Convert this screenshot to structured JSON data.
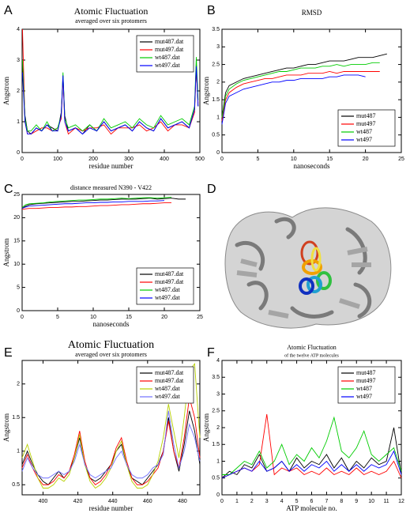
{
  "chart_data": [
    {
      "type": "line",
      "label": "A",
      "title": "Atomic Fluctuation",
      "subtitle": "averaged over six protomers",
      "xlabel": "residue number",
      "ylabel": "Angstrom",
      "x": [
        1,
        8,
        15,
        25,
        40,
        55,
        70,
        85,
        100,
        110,
        115,
        120,
        130,
        150,
        170,
        190,
        210,
        230,
        250,
        270,
        290,
        310,
        330,
        350,
        370,
        390,
        410,
        430,
        450,
        470,
        485,
        490,
        495
      ],
      "series": [
        {
          "name": "mut487.dat",
          "color": "#000000",
          "values": [
            2.8,
            1.2,
            0.7,
            0.6,
            0.8,
            0.7,
            0.9,
            0.8,
            0.7,
            1.3,
            2.5,
            1.2,
            0.7,
            0.8,
            0.6,
            0.9,
            0.7,
            1.0,
            0.7,
            0.8,
            0.9,
            0.7,
            1.0,
            0.8,
            0.7,
            1.1,
            0.8,
            0.9,
            1.0,
            0.8,
            1.4,
            2.9,
            1.5
          ]
        },
        {
          "name": "mut497.dat",
          "color": "#ff0000",
          "values": [
            4.0,
            1.0,
            0.6,
            0.6,
            0.7,
            0.8,
            0.8,
            0.7,
            0.8,
            1.1,
            2.4,
            1.0,
            0.6,
            0.8,
            0.7,
            0.8,
            0.8,
            0.9,
            0.6,
            0.8,
            0.8,
            0.8,
            0.9,
            0.7,
            0.8,
            1.0,
            0.7,
            0.9,
            0.9,
            0.8,
            1.3,
            2.7,
            1.6
          ]
        },
        {
          "name": "wt487.dat",
          "color": "#00cc00",
          "values": [
            3.0,
            1.1,
            0.7,
            0.7,
            0.9,
            0.7,
            1.0,
            0.7,
            0.8,
            1.2,
            2.6,
            1.1,
            0.8,
            0.9,
            0.7,
            0.9,
            0.7,
            1.1,
            0.8,
            0.9,
            1.0,
            0.8,
            1.1,
            0.9,
            0.8,
            1.2,
            0.9,
            1.0,
            1.1,
            0.9,
            1.5,
            3.1,
            1.7
          ]
        },
        {
          "name": "wt497.dat",
          "color": "#0000ff",
          "values": [
            2.6,
            1.0,
            0.6,
            0.6,
            0.8,
            0.7,
            0.9,
            0.7,
            0.7,
            1.2,
            2.5,
            1.0,
            0.7,
            0.8,
            0.6,
            0.8,
            0.7,
            1.0,
            0.7,
            0.8,
            0.9,
            0.7,
            1.0,
            0.8,
            0.7,
            1.1,
            0.8,
            0.9,
            1.0,
            0.8,
            1.4,
            2.8,
            1.5
          ]
        }
      ],
      "xlim": [
        0,
        500
      ],
      "xticks": [
        0,
        100,
        200,
        300,
        400,
        500
      ],
      "ylim": [
        0,
        4
      ],
      "yticks": [
        0,
        1,
        2,
        3,
        4
      ],
      "legend": "upper right"
    },
    {
      "type": "line",
      "label": "B",
      "title": "RMSD",
      "xlabel": "nanoseconds",
      "ylabel": "Angstrom",
      "x": [
        0,
        0.5,
        1,
        2,
        3,
        4,
        5,
        6,
        7,
        8,
        9,
        10,
        11,
        12,
        13,
        14,
        15,
        16,
        17,
        18,
        19,
        20,
        21,
        22,
        23
      ],
      "series": [
        {
          "name": "mut487",
          "color": "#000000",
          "values": [
            1.0,
            1.7,
            1.9,
            2.0,
            2.1,
            2.15,
            2.2,
            2.25,
            2.3,
            2.35,
            2.4,
            2.4,
            2.45,
            2.5,
            2.5,
            2.55,
            2.6,
            2.6,
            2.6,
            2.65,
            2.7,
            2.7,
            2.7,
            2.75,
            2.8
          ]
        },
        {
          "name": "mut497",
          "color": "#ff0000",
          "values": [
            0.9,
            1.5,
            1.7,
            1.85,
            1.95,
            2.0,
            2.05,
            2.1,
            2.1,
            2.15,
            2.2,
            2.2,
            2.2,
            2.25,
            2.25,
            2.25,
            2.3,
            2.25,
            2.3,
            2.3,
            2.3,
            2.3,
            2.3,
            2.3,
            null
          ]
        },
        {
          "name": "wt487",
          "color": "#00cc00",
          "values": [
            1.0,
            1.6,
            1.8,
            1.95,
            2.05,
            2.1,
            2.15,
            2.2,
            2.25,
            2.3,
            2.3,
            2.35,
            2.4,
            2.4,
            2.4,
            2.45,
            2.45,
            2.5,
            2.45,
            2.5,
            2.5,
            2.5,
            2.55,
            2.55,
            null
          ]
        },
        {
          "name": "wt497",
          "color": "#0000ff",
          "values": [
            0.8,
            1.4,
            1.6,
            1.7,
            1.8,
            1.85,
            1.9,
            1.95,
            2.0,
            2.0,
            2.05,
            2.05,
            2.1,
            2.1,
            2.1,
            2.1,
            2.15,
            2.15,
            2.2,
            2.2,
            2.2,
            2.15,
            null,
            null,
            null
          ]
        }
      ],
      "xlim": [
        0,
        25
      ],
      "xticks": [
        0,
        5,
        10,
        15,
        20,
        25
      ],
      "ylim": [
        0,
        3.5
      ],
      "yticks": [
        0,
        0.5,
        1,
        1.5,
        2,
        2.5,
        3,
        3.5
      ],
      "legend": "lower right"
    },
    {
      "type": "line",
      "label": "C",
      "title": "distance measured N390 - V422",
      "xlabel": "nanoseconds",
      "ylabel": "Angstrom",
      "x": [
        0,
        0.5,
        1,
        2,
        3,
        4,
        5,
        6,
        7,
        8,
        9,
        10,
        11,
        12,
        13,
        14,
        15,
        16,
        17,
        18,
        19,
        20,
        21,
        22,
        23
      ],
      "series": [
        {
          "name": "mut487.dat",
          "color": "#000000",
          "values": [
            22,
            22.5,
            22.8,
            23,
            23.1,
            23.2,
            23.3,
            23.4,
            23.5,
            23.5,
            23.6,
            23.7,
            23.8,
            23.8,
            23.9,
            24,
            24,
            24,
            24.1,
            24.2,
            24,
            24.1,
            24.2,
            24,
            24
          ]
        },
        {
          "name": "mut497.dat",
          "color": "#ff0000",
          "values": [
            21.8,
            21.9,
            22,
            22,
            22.1,
            22.2,
            22.2,
            22.3,
            22.3,
            22.4,
            22.4,
            22.5,
            22.6,
            22.6,
            22.7,
            22.8,
            22.8,
            22.9,
            23,
            23,
            23.1,
            23.2,
            23.2,
            null,
            null
          ]
        },
        {
          "name": "wt487.dat",
          "color": "#00cc00",
          "values": [
            22.2,
            22.8,
            23,
            23.1,
            23.2,
            23.4,
            23.5,
            23.6,
            23.7,
            23.8,
            23.8,
            23.9,
            24,
            24,
            24.1,
            24.2,
            24.1,
            24.2,
            24.3,
            24.3,
            24.2,
            24.3,
            24.4,
            null,
            null
          ]
        },
        {
          "name": "wt497.dat",
          "color": "#0000ff",
          "values": [
            22,
            22.3,
            22.5,
            22.6,
            22.7,
            22.8,
            22.9,
            23,
            23,
            23.1,
            23.2,
            23.2,
            23.3,
            23.3,
            23.4,
            23.4,
            23.5,
            23.5,
            23.5,
            23.6,
            23.6,
            23.7,
            null,
            null,
            null
          ]
        }
      ],
      "xlim": [
        0,
        25
      ],
      "xticks": [
        0,
        5,
        10,
        15,
        20,
        25
      ],
      "ylim": [
        0,
        25
      ],
      "yticks": [
        0,
        5,
        10,
        15,
        20,
        25
      ],
      "legend": "lower right"
    },
    {
      "type": "image",
      "label": "D"
    },
    {
      "type": "line",
      "label": "E",
      "title": "Atomic Fluctuation",
      "subtitle": "averaged over six protomers",
      "xlabel": "residue number",
      "ylabel": "Angstrom",
      "x": [
        388,
        391,
        394,
        397,
        400,
        403,
        406,
        409,
        412,
        415,
        418,
        421,
        424,
        427,
        430,
        433,
        436,
        439,
        442,
        445,
        448,
        451,
        454,
        457,
        460,
        463,
        466,
        469,
        472,
        475,
        478,
        481,
        484,
        487,
        490
      ],
      "series": [
        {
          "name": "mut487.dat",
          "color": "#000000",
          "values": [
            0.8,
            1.0,
            0.8,
            0.65,
            0.55,
            0.5,
            0.6,
            0.7,
            0.6,
            0.7,
            0.9,
            1.2,
            0.8,
            0.6,
            0.55,
            0.6,
            0.7,
            0.8,
            1.0,
            1.1,
            0.8,
            0.6,
            0.55,
            0.5,
            0.6,
            0.7,
            0.8,
            1.0,
            1.5,
            1.0,
            0.7,
            1.1,
            1.6,
            1.3,
            0.8
          ]
        },
        {
          "name": "mut497.dat",
          "color": "#ff0000",
          "values": [
            0.75,
            0.95,
            0.75,
            0.6,
            0.5,
            0.5,
            0.55,
            0.65,
            0.6,
            0.7,
            0.95,
            1.3,
            0.85,
            0.6,
            0.5,
            0.55,
            0.65,
            0.8,
            1.05,
            1.2,
            0.85,
            0.6,
            0.5,
            0.5,
            0.55,
            0.65,
            0.75,
            1.0,
            1.45,
            1.0,
            0.75,
            1.2,
            1.8,
            1.5,
            0.9
          ]
        },
        {
          "name": "wt487.dat",
          "color": "#b8d000",
          "values": [
            0.9,
            1.1,
            0.85,
            0.6,
            0.45,
            0.45,
            0.5,
            0.6,
            0.55,
            0.65,
            0.9,
            1.25,
            0.8,
            0.55,
            0.45,
            0.5,
            0.6,
            0.75,
            1.0,
            1.15,
            0.8,
            0.55,
            0.45,
            0.45,
            0.5,
            0.65,
            0.85,
            1.2,
            1.7,
            1.3,
            0.9,
            1.5,
            2.2,
            2.3,
            1.2
          ]
        },
        {
          "name": "wt497.dat",
          "color": "#7070ff",
          "values": [
            0.7,
            0.9,
            0.75,
            0.65,
            0.6,
            0.6,
            0.65,
            0.7,
            0.65,
            0.7,
            0.85,
            1.1,
            0.8,
            0.65,
            0.6,
            0.65,
            0.7,
            0.75,
            0.9,
            1.0,
            0.8,
            0.65,
            0.6,
            0.6,
            0.65,
            0.75,
            0.8,
            0.95,
            1.6,
            1.1,
            0.75,
            1.0,
            1.4,
            1.2,
            0.85
          ]
        }
      ],
      "xlim": [
        388,
        490
      ],
      "xticks": [
        400,
        420,
        440,
        460,
        480
      ],
      "ylim": [
        0.35,
        2.35
      ],
      "yticks": [
        0.5,
        1,
        1.5,
        2
      ],
      "legend": "upper right"
    },
    {
      "type": "line",
      "label": "F",
      "title": "Atomic Fluctuation",
      "subtitle": "of the twelve ATP molecules",
      "xlabel": "ATP molecule no.",
      "ylabel": "Angstrom",
      "x": [
        0,
        0.5,
        1,
        1.5,
        2,
        2.5,
        3,
        3.5,
        4,
        4.5,
        5,
        5.5,
        6,
        6.5,
        7,
        7.5,
        8,
        8.5,
        9,
        9.5,
        10,
        10.5,
        11,
        11.5,
        12
      ],
      "series": [
        {
          "name": "mut487",
          "color": "#000000",
          "values": [
            0.5,
            0.7,
            0.6,
            0.9,
            0.8,
            1.2,
            0.7,
            0.8,
            1.0,
            0.7,
            1.1,
            0.8,
            1.0,
            0.9,
            1.2,
            0.8,
            1.1,
            0.7,
            1.0,
            0.8,
            1.1,
            0.9,
            1.0,
            2.0,
            0.6
          ]
        },
        {
          "name": "mut497",
          "color": "#ff0000",
          "values": [
            0.5,
            0.6,
            0.7,
            0.8,
            0.7,
            0.9,
            2.4,
            0.6,
            0.8,
            0.7,
            0.8,
            0.6,
            0.7,
            0.6,
            0.8,
            0.6,
            0.7,
            0.6,
            0.8,
            0.6,
            0.7,
            0.6,
            0.7,
            1.0,
            0.5
          ]
        },
        {
          "name": "wt487",
          "color": "#00cc00",
          "values": [
            0.6,
            0.6,
            0.8,
            1.0,
            0.9,
            1.3,
            0.8,
            1.0,
            1.5,
            0.9,
            1.2,
            1.0,
            1.4,
            1.1,
            1.6,
            2.3,
            1.3,
            1.1,
            1.4,
            1.9,
            1.2,
            1.0,
            1.2,
            1.4,
            0.7
          ]
        },
        {
          "name": "wt497",
          "color": "#0000ff",
          "values": [
            0.5,
            0.6,
            0.7,
            0.8,
            0.7,
            1.0,
            0.7,
            0.8,
            1.0,
            0.7,
            0.9,
            0.7,
            0.9,
            0.8,
            1.0,
            0.7,
            0.9,
            0.7,
            0.9,
            0.7,
            0.9,
            0.8,
            0.9,
            1.3,
            0.6
          ]
        }
      ],
      "xlim": [
        0,
        12
      ],
      "xticks": [
        0,
        1,
        2,
        3,
        4,
        5,
        6,
        7,
        8,
        9,
        10,
        11,
        12
      ],
      "ylim": [
        0,
        4
      ],
      "yticks": [
        0,
        0.5,
        1,
        1.5,
        2,
        2.5,
        3,
        3.5,
        4
      ],
      "legend": "upper right"
    }
  ]
}
